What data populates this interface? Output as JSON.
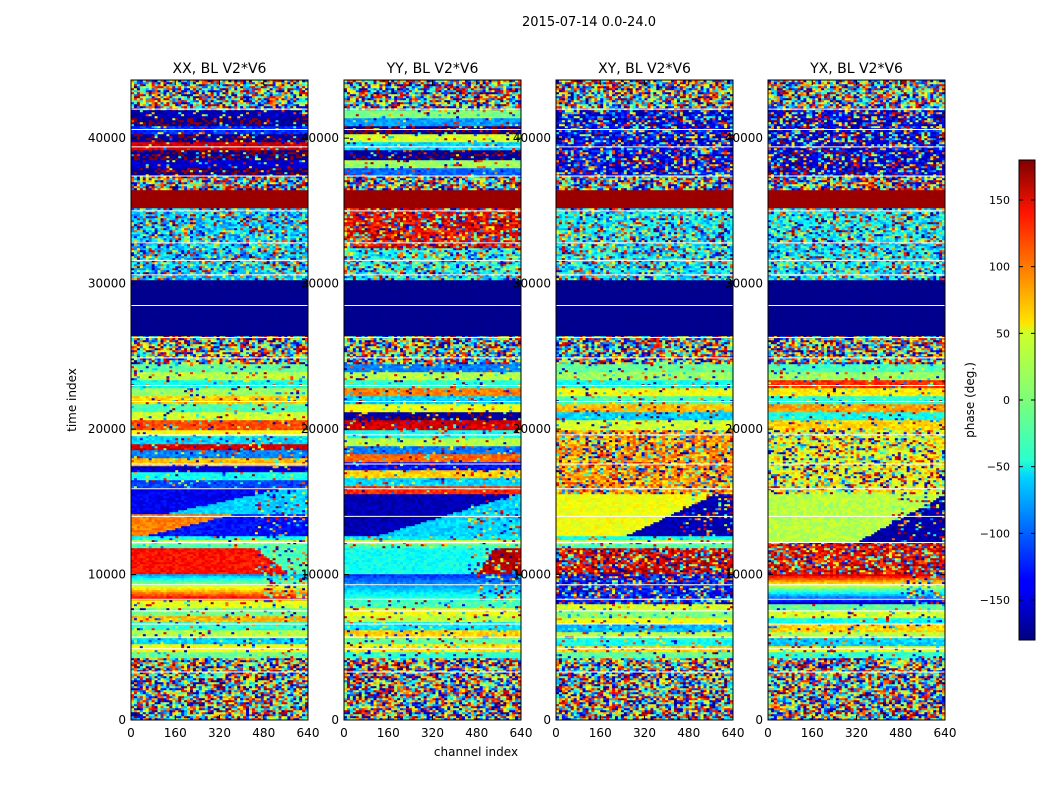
{
  "figure": {
    "suptitle": "2015-07-14 0.0-24.0",
    "xlabel": "channel index",
    "ylabel": "time index",
    "colorbar_label": "phase (deg.)"
  },
  "chart_data": {
    "type": "heatmap",
    "title": "2015-07-14 0.0-24.0",
    "xlabel": "channel index",
    "ylabel": "time index",
    "xlim": [
      0,
      640
    ],
    "ylim": [
      0,
      44000
    ],
    "x_ticks": [
      0,
      160,
      320,
      480,
      640
    ],
    "y_ticks": [
      0,
      10000,
      20000,
      30000,
      40000
    ],
    "colorbar": {
      "label": "phase (deg.)",
      "range": [
        -180,
        180
      ],
      "ticks": [
        -150,
        -100,
        -50,
        0,
        50,
        100,
        150
      ],
      "tick_labels": [
        "−150",
        "−100",
        "−50",
        "0",
        "50",
        "100",
        "150"
      ],
      "colormap": "jet"
    },
    "panels": [
      {
        "title": "XX, BL V2*V6",
        "seed": 11,
        "bands": [
          {
            "t0": 0,
            "t1": 4200,
            "kind": "noise"
          },
          {
            "t0": 4200,
            "t1": 8200,
            "kind": "stripes",
            "phases": [
              -10,
              40,
              -60,
              20,
              -30,
              70,
              -5,
              35
            ]
          },
          {
            "t0": 8200,
            "t1": 10000,
            "kind": "gradient",
            "p0": 160,
            "p1": -80
          },
          {
            "t0": 10000,
            "t1": 11800,
            "kind": "split",
            "left": 130,
            "right": -20,
            "edge0": 0.9,
            "edge1": 0.7
          },
          {
            "t0": 11800,
            "t1": 12700,
            "kind": "stripes",
            "phases": [
              -20,
              30,
              -40
            ]
          },
          {
            "t0": 12700,
            "t1": 14200,
            "kind": "split",
            "left": 90,
            "right": -130,
            "edge0": 0.1,
            "edge1": 0.6
          },
          {
            "t0": 14200,
            "t1": 16000,
            "kind": "split",
            "left": -140,
            "right": -60,
            "edge0": 0.2,
            "edge1": 0.9
          },
          {
            "t0": 16000,
            "t1": 20000,
            "kind": "stripes",
            "phases": [
              -110,
              -40,
              -150,
              70,
              -90,
              150,
              -60,
              40
            ]
          },
          {
            "t0": 20000,
            "t1": 24500,
            "kind": "stripes",
            "phases": [
              110,
              30,
              -20,
              60,
              10,
              -40,
              20,
              -10
            ]
          },
          {
            "t0": 24500,
            "t1": 26400,
            "kind": "noise"
          },
          {
            "t0": 26400,
            "t1": 30200,
            "kind": "solid",
            "p": -175
          },
          {
            "t0": 30200,
            "t1": 35200,
            "kind": "noisebias",
            "p": -60
          },
          {
            "t0": 35200,
            "t1": 36400,
            "kind": "solid",
            "p": 170
          },
          {
            "t0": 36400,
            "t1": 37400,
            "kind": "noise"
          },
          {
            "t0": 37400,
            "t1": 42000,
            "kind": "stripes",
            "phases": [
              -175,
              -150,
              -175,
              150,
              -170,
              -120,
              -175,
              -160
            ]
          },
          {
            "t0": 42000,
            "t1": 44000,
            "kind": "noise"
          }
        ]
      },
      {
        "title": "YY, BL V2*V6",
        "seed": 23,
        "bands": [
          {
            "t0": 0,
            "t1": 4200,
            "kind": "noise"
          },
          {
            "t0": 4200,
            "t1": 8200,
            "kind": "stripes",
            "phases": [
              -30,
              50,
              -10,
              60,
              -50,
              20,
              40,
              -20
            ]
          },
          {
            "t0": 8200,
            "t1": 10000,
            "kind": "gradient",
            "p0": -20,
            "p1": -120
          },
          {
            "t0": 10000,
            "t1": 11800,
            "kind": "split",
            "left": -40,
            "right": 160,
            "edge0": 0.75,
            "edge1": 0.85
          },
          {
            "t0": 11800,
            "t1": 12700,
            "kind": "stripes",
            "phases": [
              -20,
              40,
              -50
            ]
          },
          {
            "t0": 12700,
            "t1": 15600,
            "kind": "split",
            "left": -160,
            "right": -60,
            "edge0": 0.2,
            "edge1": 1.0
          },
          {
            "t0": 15600,
            "t1": 20000,
            "kind": "stripes",
            "phases": [
              120,
              -60,
              60,
              -130,
              100,
              -90,
              20,
              -40
            ]
          },
          {
            "t0": 20000,
            "t1": 24500,
            "kind": "stripes",
            "phases": [
              150,
              -170,
              40,
              -60,
              90,
              -30,
              20,
              -90
            ]
          },
          {
            "t0": 24500,
            "t1": 26400,
            "kind": "noise"
          },
          {
            "t0": 26400,
            "t1": 30200,
            "kind": "solid",
            "p": -175
          },
          {
            "t0": 30200,
            "t1": 32400,
            "kind": "noisebias",
            "p": -40
          },
          {
            "t0": 32400,
            "t1": 35200,
            "kind": "noisebias",
            "p": 140
          },
          {
            "t0": 35200,
            "t1": 36400,
            "kind": "solid",
            "p": 170
          },
          {
            "t0": 36400,
            "t1": 37400,
            "kind": "noise"
          },
          {
            "t0": 37400,
            "t1": 42000,
            "kind": "stripes",
            "phases": [
              -100,
              10,
              -170,
              -60,
              30,
              -175,
              -80,
              0
            ]
          },
          {
            "t0": 42000,
            "t1": 44000,
            "kind": "noise"
          }
        ]
      },
      {
        "title": "XY, BL V2*V6",
        "seed": 37,
        "bands": [
          {
            "t0": 0,
            "t1": 4200,
            "kind": "noise"
          },
          {
            "t0": 4200,
            "t1": 8000,
            "kind": "stripes",
            "phases": [
              -10,
              60,
              -40,
              20,
              -70,
              40,
              0,
              30
            ]
          },
          {
            "t0": 8000,
            "t1": 10000,
            "kind": "noisebias",
            "p": -130
          },
          {
            "t0": 10000,
            "t1": 11800,
            "kind": "noisebias",
            "p": 150
          },
          {
            "t0": 11800,
            "t1": 12700,
            "kind": "stripes",
            "phases": [
              -20,
              30,
              -40
            ]
          },
          {
            "t0": 12700,
            "t1": 15500,
            "kind": "split",
            "left": 40,
            "right": -160,
            "edge0": 0.4,
            "edge1": 0.9
          },
          {
            "t0": 15500,
            "t1": 20000,
            "kind": "noisebias",
            "p": 80
          },
          {
            "t0": 20000,
            "t1": 24500,
            "kind": "stripes",
            "phases": [
              30,
              -60,
              70,
              -20,
              40,
              -40,
              10,
              -10
            ]
          },
          {
            "t0": 24500,
            "t1": 26400,
            "kind": "noise"
          },
          {
            "t0": 26400,
            "t1": 30200,
            "kind": "solid",
            "p": -175
          },
          {
            "t0": 30200,
            "t1": 35200,
            "kind": "noisebias",
            "p": -50
          },
          {
            "t0": 35200,
            "t1": 36400,
            "kind": "solid",
            "p": 170
          },
          {
            "t0": 36400,
            "t1": 37400,
            "kind": "noise"
          },
          {
            "t0": 37400,
            "t1": 42000,
            "kind": "noisebias",
            "p": -140
          },
          {
            "t0": 42000,
            "t1": 44000,
            "kind": "noise"
          }
        ]
      },
      {
        "title": "YX, BL V2*V6",
        "seed": 53,
        "bands": [
          {
            "t0": 0,
            "t1": 4200,
            "kind": "noise"
          },
          {
            "t0": 4200,
            "t1": 8000,
            "kind": "stripes",
            "phases": [
              -30,
              40,
              -60,
              20,
              60,
              -40,
              30,
              -10
            ]
          },
          {
            "t0": 8000,
            "t1": 10000,
            "kind": "gradient",
            "p0": -160,
            "p1": 150
          },
          {
            "t0": 10000,
            "t1": 12200,
            "kind": "noisebias",
            "p": 140
          },
          {
            "t0": 12200,
            "t1": 15500,
            "kind": "split",
            "left": 20,
            "right": -165,
            "edge0": 0.5,
            "edge1": 1.0
          },
          {
            "t0": 15500,
            "t1": 20000,
            "kind": "noisebias",
            "p": 40
          },
          {
            "t0": 20000,
            "t1": 24500,
            "kind": "stripes",
            "phases": [
              60,
              -40,
              80,
              -30,
              50,
              120,
              10,
              -20
            ]
          },
          {
            "t0": 24500,
            "t1": 26400,
            "kind": "noise"
          },
          {
            "t0": 26400,
            "t1": 30200,
            "kind": "solid",
            "p": -175
          },
          {
            "t0": 30200,
            "t1": 35200,
            "kind": "noisebias",
            "p": -50
          },
          {
            "t0": 35200,
            "t1": 36400,
            "kind": "solid",
            "p": 170
          },
          {
            "t0": 36400,
            "t1": 37400,
            "kind": "noise"
          },
          {
            "t0": 37400,
            "t1": 42000,
            "kind": "noisebias",
            "p": -150
          },
          {
            "t0": 42000,
            "t1": 44000,
            "kind": "noise"
          }
        ]
      }
    ],
    "flagged_rows": [
      3300,
      4900,
      5700,
      6600,
      7500,
      8300,
      9300,
      12200,
      14000,
      15900,
      17600,
      19600,
      21900,
      23000,
      24900,
      26300,
      28500,
      30600,
      31600,
      32800,
      35000,
      37400,
      39400,
      40600,
      42000
    ]
  }
}
